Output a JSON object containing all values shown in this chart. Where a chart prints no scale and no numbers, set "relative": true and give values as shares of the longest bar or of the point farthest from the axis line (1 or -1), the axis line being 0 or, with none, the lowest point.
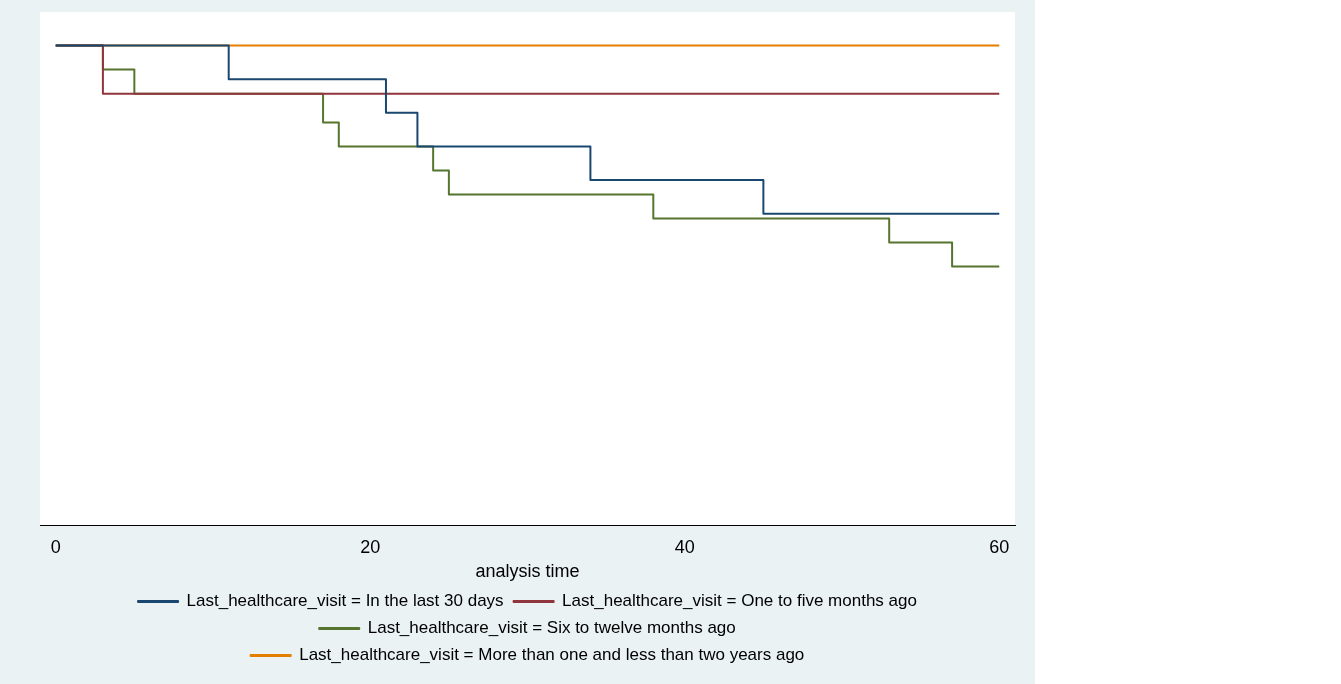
{
  "chart_data": {
    "type": "step",
    "xlabel": "analysis time",
    "relative": true,
    "xlim": [
      -1,
      61
    ],
    "xticks": [
      0,
      20,
      40,
      60
    ],
    "legend": "bottom",
    "grid": false,
    "series": [
      {
        "name": "Last_healthcare_visit = In the last 30 days",
        "color": "#1a476f",
        "x": [
          0,
          11,
          21,
          23,
          34,
          45,
          60
        ],
        "values": [
          1,
          0.93,
          0.86,
          0.79,
          0.72,
          0.65,
          0.65
        ]
      },
      {
        "name": "Last_healthcare_visit = One to five months ago",
        "color": "#90353b",
        "x": [
          0,
          3,
          60
        ],
        "values": [
          1,
          0.9,
          0.9
        ]
      },
      {
        "name": "Last_healthcare_visit = Six to twelve months ago",
        "color": "#55752f",
        "x": [
          0,
          3,
          5,
          17,
          18,
          24,
          25,
          38,
          53,
          57,
          60
        ],
        "values": [
          1,
          0.95,
          0.9,
          0.84,
          0.79,
          0.74,
          0.69,
          0.64,
          0.59,
          0.54,
          0.54
        ]
      },
      {
        "name": "Last_healthcare_visit = More than one and less than two years ago",
        "color": "#e37e00",
        "x": [
          0,
          60
        ],
        "values": [
          1,
          1
        ]
      }
    ]
  }
}
